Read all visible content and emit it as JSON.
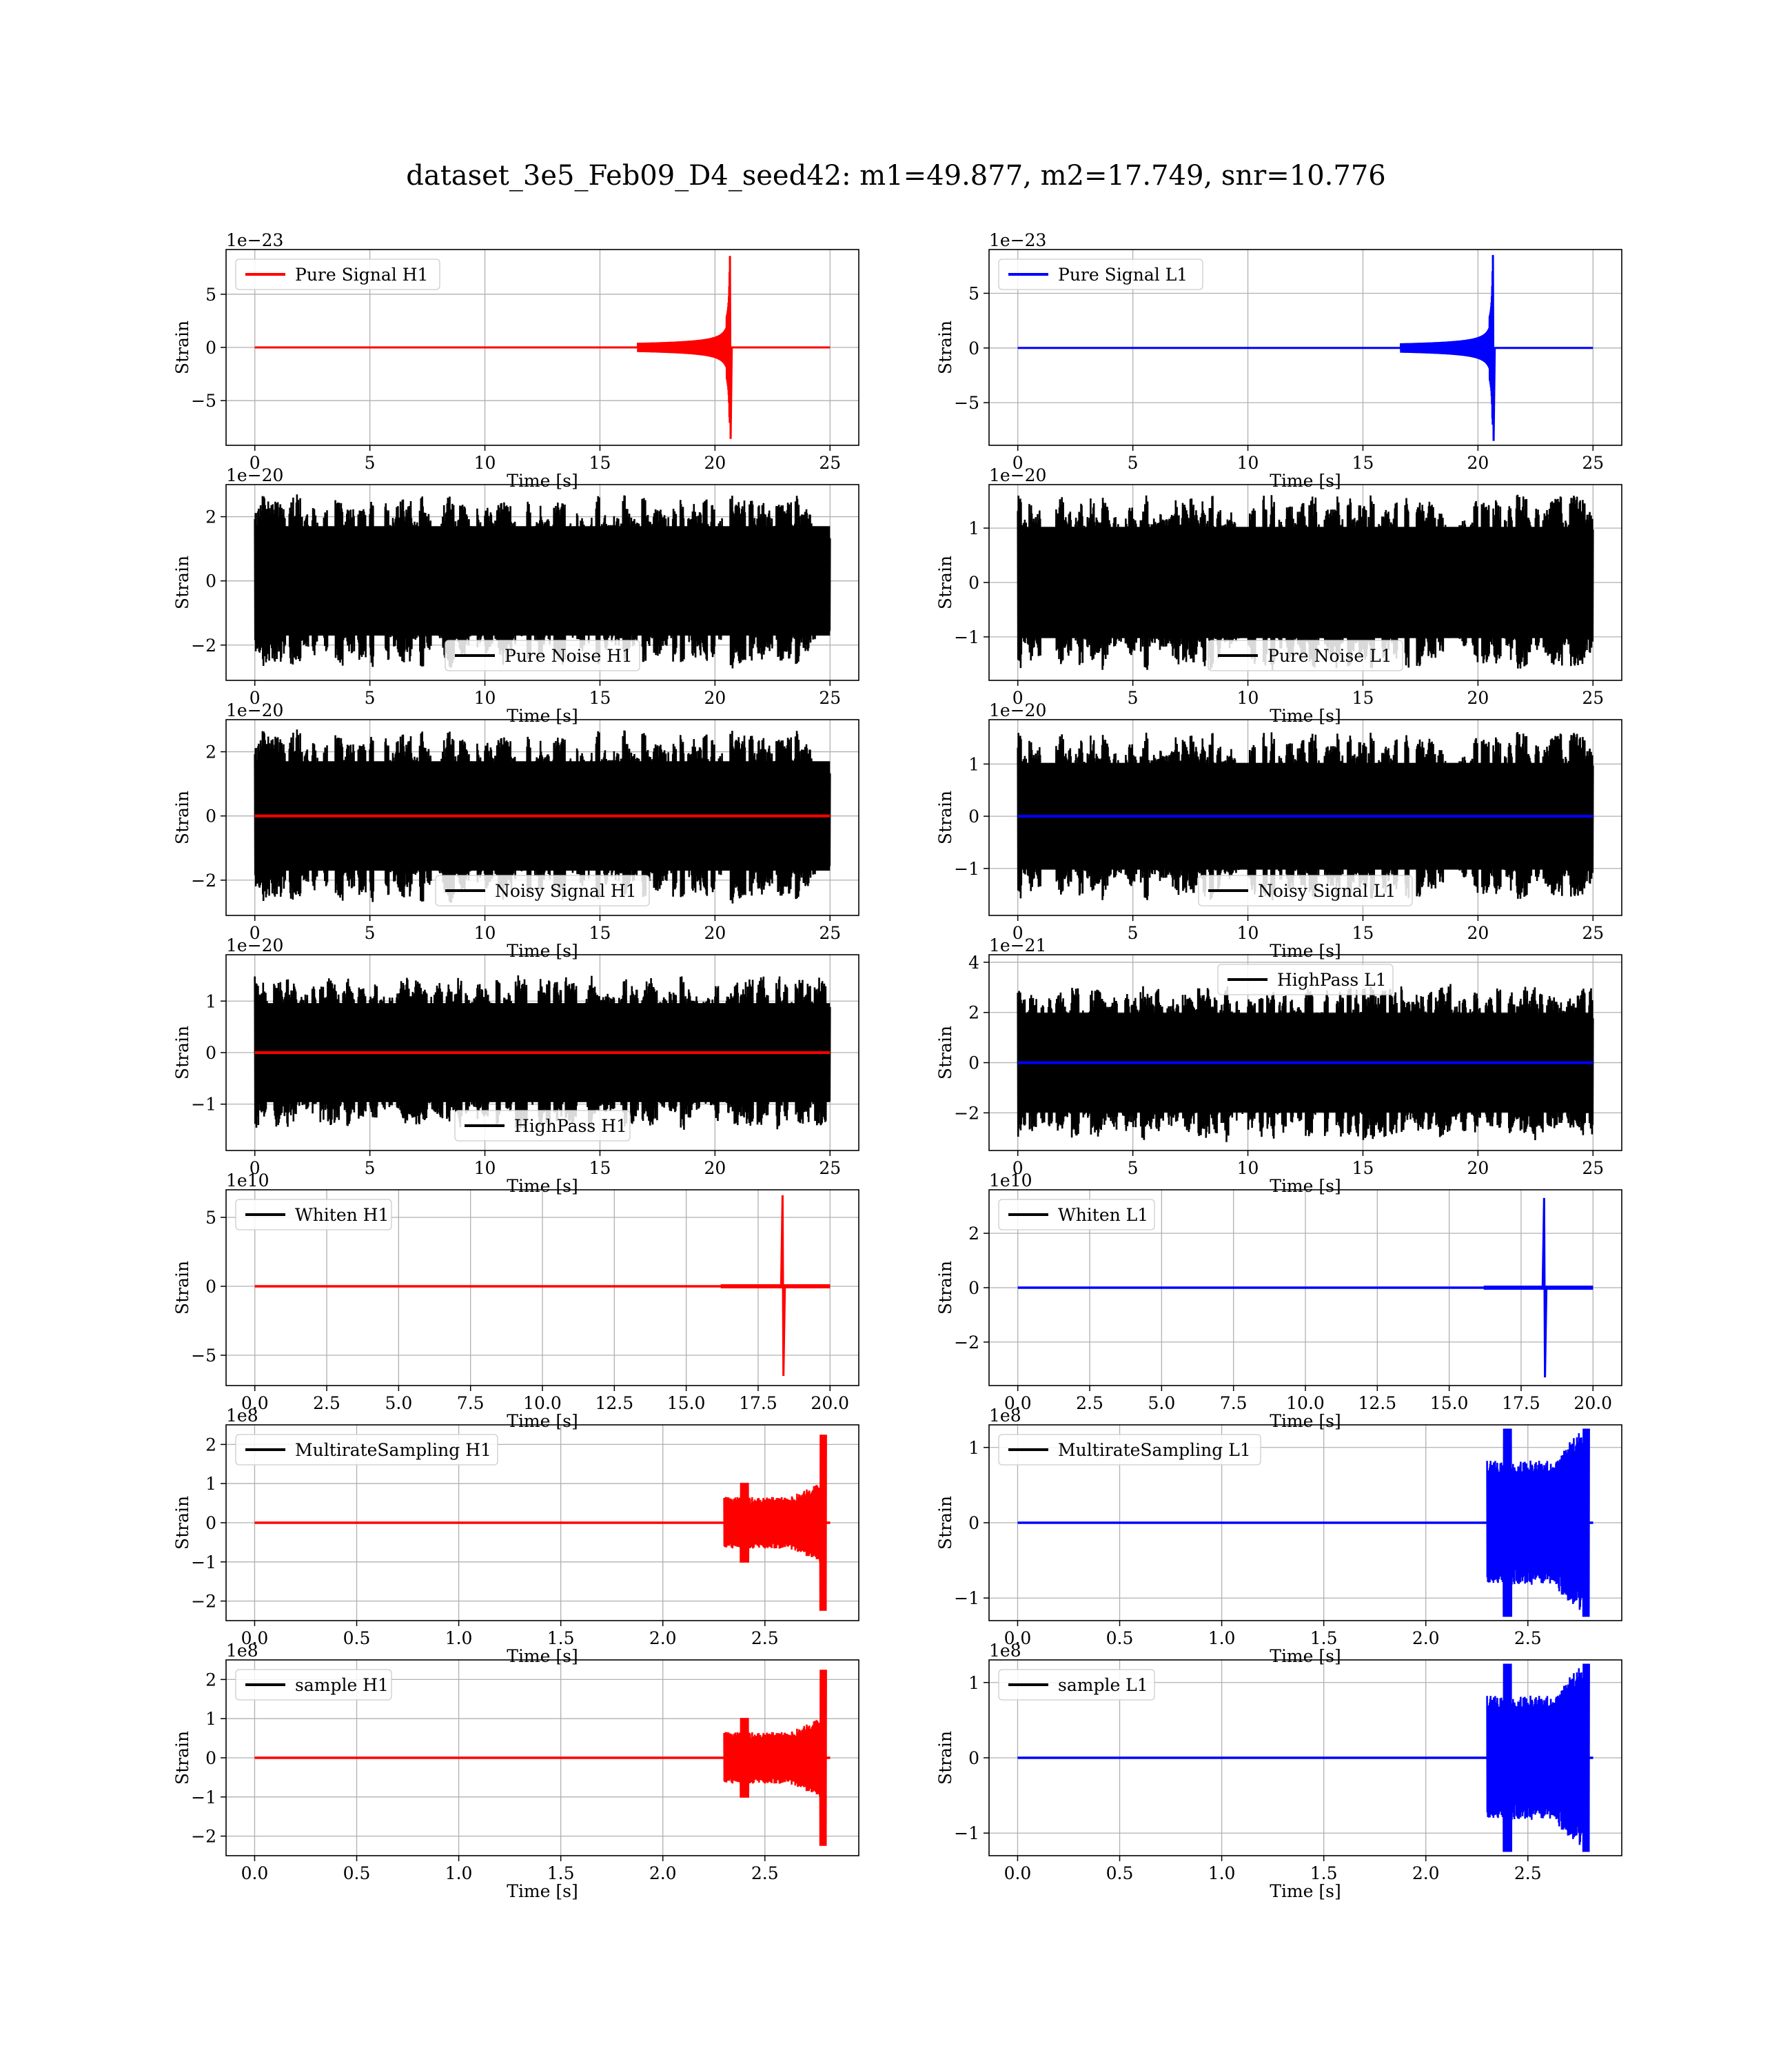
{
  "suptitle": "dataset_3e5_Feb09_D4_seed42: m1=49.877, m2=17.749, snr=10.776",
  "colors": {
    "h1": "#ff0000",
    "l1": "#0000ff",
    "noise": "#000000",
    "grid": "#b0b0b0"
  },
  "chart_data": [
    {
      "type": "line",
      "row": 0,
      "col": 0,
      "legend": "Pure Signal H1",
      "legend_loc": "upper-left",
      "legend_color": "#ff0000",
      "xlabel": "Time [s]",
      "ylabel": "Strain",
      "multiplier": "1e−23",
      "xlim": [
        -1.25,
        26.25
      ],
      "ylim": [
        -9.2,
        9.2
      ],
      "xticks": [
        0,
        5,
        10,
        15,
        20,
        25
      ],
      "xtick_labels": [
        "0",
        "5",
        "10",
        "15",
        "20",
        "25"
      ],
      "yticks": [
        -5,
        0,
        5
      ],
      "ytick_labels": [
        "−5",
        "0",
        "5"
      ],
      "series": [
        {
          "kind": "chirp",
          "color": "#ff0000",
          "t0": 0,
          "t1": 25,
          "tc": 20.65,
          "peak": 8.6
        }
      ]
    },
    {
      "type": "line",
      "row": 0,
      "col": 1,
      "legend": "Pure Signal L1",
      "legend_loc": "upper-left",
      "legend_color": "#0000ff",
      "xlabel": "Time [s]",
      "ylabel": "Strain",
      "multiplier": "1e−23",
      "xlim": [
        -1.25,
        26.25
      ],
      "ylim": [
        -8.9,
        9.0
      ],
      "xticks": [
        0,
        5,
        10,
        15,
        20,
        25
      ],
      "xtick_labels": [
        "0",
        "5",
        "10",
        "15",
        "20",
        "25"
      ],
      "yticks": [
        -5,
        0,
        5
      ],
      "ytick_labels": [
        "−5",
        "0",
        "5"
      ],
      "series": [
        {
          "kind": "chirp",
          "color": "#0000ff",
          "t0": 0,
          "t1": 25,
          "tc": 20.65,
          "peak": 8.5
        }
      ]
    },
    {
      "type": "line",
      "row": 1,
      "col": 0,
      "legend": "Pure Noise H1",
      "legend_loc": "lower-center",
      "legend_color": "#000000",
      "xlabel": "Time [s]",
      "ylabel": "Strain",
      "multiplier": "1e−20",
      "xlim": [
        -1.25,
        26.25
      ],
      "ylim": [
        -3.1,
        3.0
      ],
      "xticks": [
        0,
        5,
        10,
        15,
        20,
        25
      ],
      "xtick_labels": [
        "0",
        "5",
        "10",
        "15",
        "20",
        "25"
      ],
      "yticks": [
        -2,
        0,
        2
      ],
      "ytick_labels": [
        "−2",
        "0",
        "2"
      ],
      "series": [
        {
          "kind": "noise",
          "color": "#000000",
          "t0": 0,
          "t1": 25,
          "amp": 2.75,
          "seed": 11
        }
      ]
    },
    {
      "type": "line",
      "row": 1,
      "col": 1,
      "legend": "Pure Noise L1",
      "legend_loc": "lower-center",
      "legend_color": "#000000",
      "xlabel": "Time [s]",
      "ylabel": "Strain",
      "multiplier": "1e−20",
      "xlim": [
        -1.25,
        26.25
      ],
      "ylim": [
        -1.8,
        1.8
      ],
      "xticks": [
        0,
        5,
        10,
        15,
        20,
        25
      ],
      "xtick_labels": [
        "0",
        "5",
        "10",
        "15",
        "20",
        "25"
      ],
      "yticks": [
        -1,
        0,
        1
      ],
      "ytick_labels": [
        "−1",
        "0",
        "1"
      ],
      "series": [
        {
          "kind": "noise",
          "color": "#000000",
          "t0": 0,
          "t1": 25,
          "amp": 1.65,
          "seed": 23
        }
      ]
    },
    {
      "type": "line",
      "row": 2,
      "col": 0,
      "legend": "Noisy Signal H1",
      "legend_loc": "lower-center",
      "legend_color": "#000000",
      "xlabel": "Time [s]",
      "ylabel": "Strain",
      "multiplier": "1e−20",
      "xlim": [
        -1.25,
        26.25
      ],
      "ylim": [
        -3.1,
        3.0
      ],
      "xticks": [
        0,
        5,
        10,
        15,
        20,
        25
      ],
      "xtick_labels": [
        "0",
        "5",
        "10",
        "15",
        "20",
        "25"
      ],
      "yticks": [
        -2,
        0,
        2
      ],
      "ytick_labels": [
        "−2",
        "0",
        "2"
      ],
      "series": [
        {
          "kind": "noise",
          "color": "#000000",
          "t0": 0,
          "t1": 25,
          "amp": 2.75,
          "seed": 11
        },
        {
          "kind": "flat",
          "color": "#ff0000",
          "t0": 0,
          "t1": 25,
          "value": 0
        }
      ]
    },
    {
      "type": "line",
      "row": 2,
      "col": 1,
      "legend": "Noisy Signal L1",
      "legend_loc": "lower-center",
      "legend_color": "#000000",
      "xlabel": "Time [s]",
      "ylabel": "Strain",
      "multiplier": "1e−20",
      "xlim": [
        -1.25,
        26.25
      ],
      "ylim": [
        -1.9,
        1.85
      ],
      "xticks": [
        0,
        5,
        10,
        15,
        20,
        25
      ],
      "xtick_labels": [
        "0",
        "5",
        "10",
        "15",
        "20",
        "25"
      ],
      "yticks": [
        -1,
        0,
        1
      ],
      "ytick_labels": [
        "−1",
        "0",
        "1"
      ],
      "series": [
        {
          "kind": "noise",
          "color": "#000000",
          "t0": 0,
          "t1": 25,
          "amp": 1.65,
          "seed": 23
        },
        {
          "kind": "flat",
          "color": "#0000ff",
          "t0": 0,
          "t1": 25,
          "value": 0
        }
      ]
    },
    {
      "type": "line",
      "row": 3,
      "col": 0,
      "legend": "HighPass H1",
      "legend_loc": "lower-center",
      "legend_color": "#000000",
      "xlabel": "Time [s]",
      "ylabel": "Strain",
      "multiplier": "1e−20",
      "xlim": [
        -1.25,
        26.25
      ],
      "ylim": [
        -1.9,
        1.9
      ],
      "xticks": [
        0,
        5,
        10,
        15,
        20,
        25
      ],
      "xtick_labels": [
        "0",
        "5",
        "10",
        "15",
        "20",
        "25"
      ],
      "yticks": [
        -1,
        0,
        1
      ],
      "ytick_labels": [
        "−1",
        "0",
        "1"
      ],
      "series": [
        {
          "kind": "noise",
          "color": "#000000",
          "t0": 0,
          "t1": 25,
          "amp": 1.55,
          "seed": 37
        },
        {
          "kind": "flat",
          "color": "#ff0000",
          "t0": 0,
          "t1": 25,
          "value": 0
        }
      ]
    },
    {
      "type": "line",
      "row": 3,
      "col": 1,
      "legend": "HighPass L1",
      "legend_loc": "upper-center",
      "legend_color": "#000000",
      "xlabel": "Time [s]",
      "ylabel": "Strain",
      "multiplier": "1e−21",
      "xlim": [
        -1.25,
        26.25
      ],
      "ylim": [
        -3.5,
        4.3
      ],
      "xticks": [
        0,
        5,
        10,
        15,
        20,
        25
      ],
      "xtick_labels": [
        "0",
        "5",
        "10",
        "15",
        "20",
        "25"
      ],
      "yticks": [
        -2,
        0,
        2,
        4
      ],
      "ytick_labels": [
        "−2",
        "0",
        "2",
        "4"
      ],
      "series": [
        {
          "kind": "noise",
          "color": "#000000",
          "t0": 0,
          "t1": 25,
          "amp": 3.2,
          "seed": 51
        },
        {
          "kind": "flat",
          "color": "#0000ff",
          "t0": 0,
          "t1": 25,
          "value": 0
        }
      ]
    },
    {
      "type": "line",
      "row": 4,
      "col": 0,
      "legend": "Whiten H1",
      "legend_loc": "upper-left",
      "legend_color": "#000000",
      "xlabel": "Time [s]",
      "ylabel": "Strain",
      "multiplier": "1e10",
      "xlim": [
        -1.0,
        21.0
      ],
      "ylim": [
        -7.2,
        7.0
      ],
      "xticks": [
        0,
        2.5,
        5,
        7.5,
        10,
        12.5,
        15,
        17.5,
        20
      ],
      "xtick_labels": [
        "0.0",
        "2.5",
        "5.0",
        "7.5",
        "10.0",
        "12.5",
        "15.0",
        "17.5",
        "20.0"
      ],
      "yticks": [
        -5,
        0,
        5
      ],
      "ytick_labels": [
        "−5",
        "0",
        "5"
      ],
      "series": [
        {
          "kind": "spike",
          "color": "#ff0000",
          "t0": 0,
          "t1": 20,
          "tc": 18.35,
          "up": 6.6,
          "down": -6.5
        }
      ]
    },
    {
      "type": "line",
      "row": 4,
      "col": 1,
      "legend": "Whiten L1",
      "legend_loc": "upper-left",
      "legend_color": "#000000",
      "xlabel": "Time [s]",
      "ylabel": "Strain",
      "multiplier": "1e10",
      "xlim": [
        -1.0,
        21.0
      ],
      "ylim": [
        -3.6,
        3.6
      ],
      "xticks": [
        0,
        2.5,
        5,
        7.5,
        10,
        12.5,
        15,
        17.5,
        20
      ],
      "xtick_labels": [
        "0.0",
        "2.5",
        "5.0",
        "7.5",
        "10.0",
        "12.5",
        "15.0",
        "17.5",
        "20.0"
      ],
      "yticks": [
        -2,
        0,
        2
      ],
      "ytick_labels": [
        "−2",
        "0",
        "2"
      ],
      "series": [
        {
          "kind": "spike",
          "color": "#0000ff",
          "t0": 0,
          "t1": 20,
          "tc": 18.3,
          "up": 3.3,
          "down": -3.3
        }
      ]
    },
    {
      "type": "line",
      "row": 5,
      "col": 0,
      "legend": "MultirateSampling H1",
      "legend_loc": "upper-left",
      "legend_color": "#000000",
      "xlabel": "Time [s]",
      "ylabel": "Strain",
      "multiplier": "1e8",
      "xlim": [
        -0.14,
        2.96
      ],
      "ylim": [
        -2.5,
        2.5
      ],
      "xticks": [
        0,
        0.5,
        1,
        1.5,
        2,
        2.5
      ],
      "xtick_labels": [
        "0.0",
        "0.5",
        "1.0",
        "1.5",
        "2.0",
        "2.5"
      ],
      "yticks": [
        -2,
        -1,
        0,
        1,
        2
      ],
      "ytick_labels": [
        "−2",
        "−1",
        "0",
        "1",
        "2"
      ],
      "series": [
        {
          "kind": "burst",
          "color": "#ff0000",
          "t0": 0,
          "t1": 2.82,
          "tb": 2.3,
          "te": 2.8,
          "amp": 0.6,
          "peak": 2.25,
          "seed": 5
        }
      ]
    },
    {
      "type": "line",
      "row": 5,
      "col": 1,
      "legend": "MultirateSampling L1",
      "legend_loc": "upper-left",
      "legend_color": "#000000",
      "xlabel": "Time [s]",
      "ylabel": "Strain",
      "multiplier": "1e8",
      "xlim": [
        -0.14,
        2.96
      ],
      "ylim": [
        -1.3,
        1.3
      ],
      "xticks": [
        0,
        0.5,
        1,
        1.5,
        2,
        2.5
      ],
      "xtick_labels": [
        "0.0",
        "0.5",
        "1.0",
        "1.5",
        "2.0",
        "2.5"
      ],
      "yticks": [
        -1,
        0,
        1
      ],
      "ytick_labels": [
        "−1",
        "0",
        "1"
      ],
      "series": [
        {
          "kind": "burst",
          "color": "#0000ff",
          "t0": 0,
          "t1": 2.82,
          "tb": 2.3,
          "te": 2.8,
          "amp": 0.75,
          "peak": 1.25,
          "seed": 9
        }
      ]
    },
    {
      "type": "line",
      "row": 6,
      "col": 0,
      "legend": "sample H1",
      "legend_loc": "upper-left",
      "legend_color": "#000000",
      "xlabel": "Time [s]",
      "ylabel": "Strain",
      "multiplier": "1e8",
      "xlim": [
        -0.14,
        2.96
      ],
      "ylim": [
        -2.5,
        2.5
      ],
      "xticks": [
        0,
        0.5,
        1,
        1.5,
        2,
        2.5
      ],
      "xtick_labels": [
        "0.0",
        "0.5",
        "1.0",
        "1.5",
        "2.0",
        "2.5"
      ],
      "yticks": [
        -2,
        -1,
        0,
        1,
        2
      ],
      "ytick_labels": [
        "−2",
        "−1",
        "0",
        "1",
        "2"
      ],
      "series": [
        {
          "kind": "burst",
          "color": "#ff0000",
          "t0": 0,
          "t1": 2.82,
          "tb": 2.3,
          "te": 2.8,
          "amp": 0.6,
          "peak": 2.25,
          "seed": 5
        }
      ]
    },
    {
      "type": "line",
      "row": 6,
      "col": 1,
      "legend": "sample L1",
      "legend_loc": "upper-left",
      "legend_color": "#000000",
      "xlabel": "Time [s]",
      "ylabel": "Strain",
      "multiplier": "1e8",
      "xlim": [
        -0.14,
        2.96
      ],
      "ylim": [
        -1.3,
        1.3
      ],
      "xticks": [
        0,
        0.5,
        1,
        1.5,
        2,
        2.5
      ],
      "xtick_labels": [
        "0.0",
        "0.5",
        "1.0",
        "1.5",
        "2.0",
        "2.5"
      ],
      "yticks": [
        -1,
        0,
        1
      ],
      "ytick_labels": [
        "−1",
        "0",
        "1"
      ],
      "series": [
        {
          "kind": "burst",
          "color": "#0000ff",
          "t0": 0,
          "t1": 2.82,
          "tb": 2.3,
          "te": 2.8,
          "amp": 0.75,
          "peak": 1.25,
          "seed": 9
        }
      ]
    }
  ]
}
